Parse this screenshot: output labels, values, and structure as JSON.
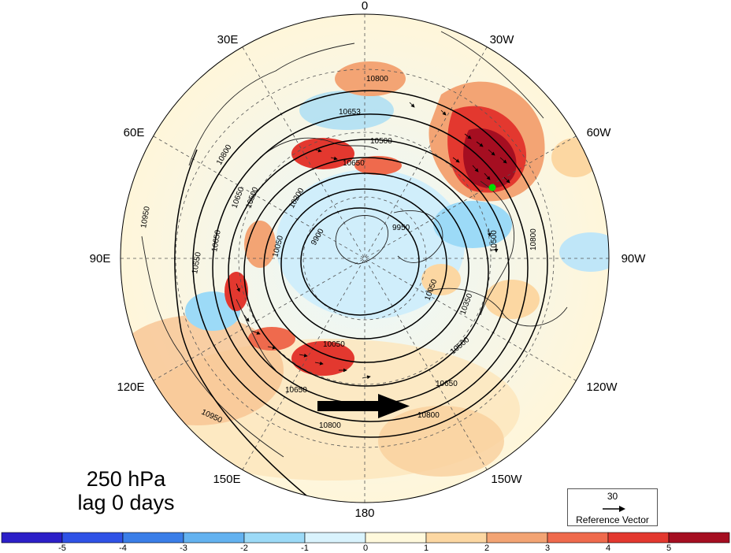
{
  "map": {
    "projection": "north polar stereographic",
    "fill_variable_colorscale": {
      "ticks": [
        "-5",
        "-4",
        "-3",
        "-2",
        "-1",
        "0",
        "1",
        "2",
        "3",
        "4",
        "5"
      ],
      "colors": [
        "#2c1fc8",
        "#2f52e6",
        "#3a7ee8",
        "#63b2f0",
        "#9cdaf7",
        "#d9f3fd",
        "#fff9dc",
        "#fcd7a2",
        "#f3a474",
        "#ef6a4d",
        "#e3382f",
        "#a50e21"
      ]
    },
    "longitude_labels": {
      "lon_0": "0",
      "lon_30w": "30W",
      "lon_60w": "60W",
      "lon_90w": "90W",
      "lon_120w": "120W",
      "lon_150w": "150W",
      "lon_180": "180",
      "lon_150e": "150E",
      "lon_120e": "120E",
      "lon_90e": "90E",
      "lon_60e": "60E",
      "lon_30e": "30E"
    },
    "contour_labels": [
      "10800",
      "10653",
      "10500",
      "10650",
      "10200",
      "10050",
      "9900",
      "9950",
      "10050",
      "10350",
      "10650",
      "10500",
      "10800",
      "10650",
      "10050",
      "10650",
      "10800",
      "10950",
      "10650",
      "10500",
      "10800",
      "10500",
      "10950",
      "10800",
      "10550"
    ],
    "contour_level_label_main": [
      "10800",
      "10650",
      "10500",
      "10350",
      "10200",
      "10050",
      "9900"
    ],
    "marker_color": "#00e000",
    "arrow_color": "#000000"
  },
  "annotation": {
    "level": "250 hPa",
    "lag": "lag 0 days"
  },
  "reference_vector": {
    "value": "30",
    "label": "Reference Vector"
  }
}
